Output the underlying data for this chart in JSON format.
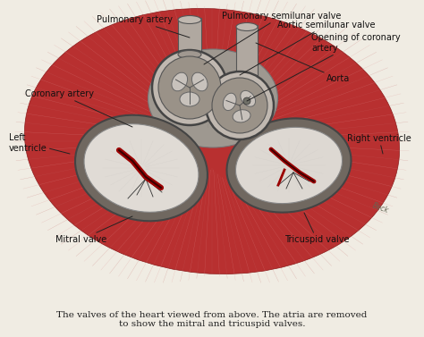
{
  "bg_color": "#f0ece3",
  "heart_color_light": "#d45050",
  "heart_color_mid": "#b83030",
  "heart_color_dark": "#8b1a1a",
  "muscle_line_color": "#e8a0a0",
  "muscle_line_dark": "#c06060",
  "valve_gray_outer": "#a8a098",
  "valve_gray_mid": "#c0b8b0",
  "valve_gray_inner": "#d8d0c8",
  "valve_cusp_color": "#b8b0a8",
  "valve_ring_edge": "#555555",
  "mitral_outer_ring": "#888880",
  "mitral_inner_bg": "#e0dbd5",
  "tricuspid_inner_bg": "#ddd8d2",
  "caption_color": "#222222",
  "label_color": "#111111",
  "arrow_color": "#222222",
  "font_size": 7.0,
  "caption_font_size": 7.5,
  "caption": "The valves of the heart viewed from above. The atria are removed\nto show the mitral and tricuspid valves.",
  "labels": {
    "pulmonary_artery": "Pulmonary artery",
    "pulmonary_semilunar": "Pulmonary semilunar valve",
    "aortic_semilunar": "Aortic semilunar valve",
    "opening_coronary": "Opening of coronary\nartery",
    "aorta": "Aorta",
    "coronary_artery": "Coronary artery",
    "left_ventricle": "Left\nventricle",
    "right_ventricle": "Right ventricle",
    "mitral_valve": "Mitral valve",
    "tricuspid_valve": "Tricuspid valve"
  }
}
